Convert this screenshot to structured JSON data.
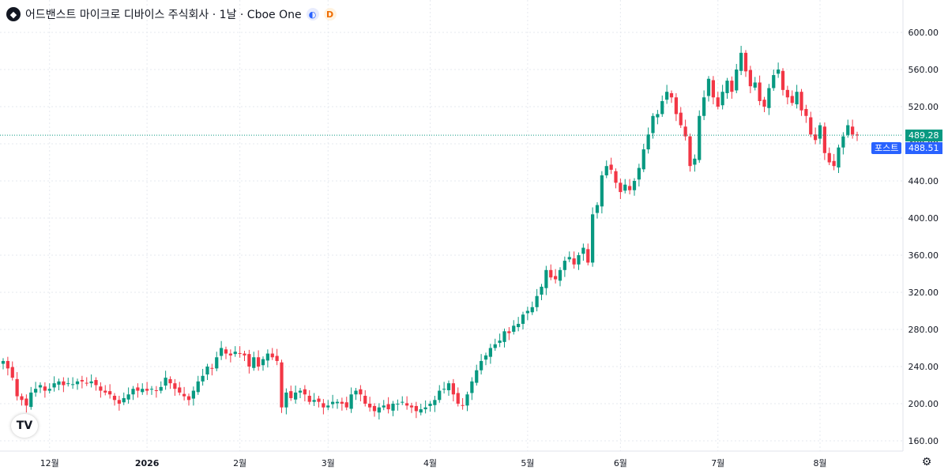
{
  "header": {
    "logo": "amd-logo-icon",
    "title": "어드밴스트 마이크로 디바이스 주식회사 · 1날 · Cboe One",
    "session_icon": "moon-icon",
    "badge": "D"
  },
  "tags": {
    "last_price": "489.28",
    "last_color": "#089981",
    "post_label": "포스트",
    "post_price": "488.51",
    "post_color": "#2962ff"
  },
  "colors": {
    "up": "#089981",
    "down": "#f23645",
    "grid": "#e6e9ef"
  },
  "chart_data": {
    "type": "candlestick",
    "y_ticks": [
      160,
      200,
      240,
      280,
      320,
      360,
      400,
      440,
      480,
      520,
      560,
      600
    ],
    "y_tick_labels": [
      "160.00",
      "200.00",
      "240.00",
      "280.00",
      "320.00",
      "360.00",
      "400.00",
      "440.00",
      "480.00",
      "520.00",
      "560.00",
      "600.00"
    ],
    "ylim": [
      150,
      600
    ],
    "x_labels": [
      {
        "text": "12월",
        "index": 10,
        "bold": false
      },
      {
        "text": "2026",
        "index": 31,
        "bold": true
      },
      {
        "text": "2월",
        "index": 51,
        "bold": false
      },
      {
        "text": "3월",
        "index": 70,
        "bold": false
      },
      {
        "text": "4월",
        "index": 92,
        "bold": false
      },
      {
        "text": "5월",
        "index": 113,
        "bold": false
      },
      {
        "text": "6월",
        "index": 133,
        "bold": false
      },
      {
        "text": "7월",
        "index": 154,
        "bold": false
      },
      {
        "text": "8월",
        "index": 176,
        "bold": false
      }
    ],
    "closes": [
      246,
      238,
      228,
      208,
      204,
      198,
      212,
      216,
      220,
      214,
      216,
      222,
      224,
      220,
      222,
      221,
      224,
      224,
      222,
      224,
      220,
      214,
      212,
      210,
      204,
      200,
      206,
      210,
      216,
      214,
      216,
      214,
      216,
      214,
      218,
      228,
      222,
      216,
      212,
      208,
      204,
      214,
      224,
      230,
      240,
      238,
      250,
      260,
      254,
      252,
      256,
      254,
      252,
      240,
      250,
      240,
      248,
      254,
      250,
      246,
      196,
      212,
      206,
      212,
      214,
      210,
      202,
      204,
      202,
      196,
      198,
      202,
      202,
      200,
      196,
      210,
      214,
      210,
      200,
      196,
      192,
      196,
      198,
      194,
      200,
      200,
      202,
      198,
      196,
      192,
      194,
      196,
      200,
      204,
      214,
      216,
      222,
      210,
      200,
      198,
      210,
      224,
      236,
      246,
      252,
      260,
      264,
      268,
      278,
      276,
      284,
      286,
      296,
      300,
      304,
      316,
      326,
      344,
      336,
      334,
      344,
      354,
      358,
      350,
      360,
      368,
      352,
      404,
      414,
      446,
      456,
      452,
      438,
      428,
      436,
      430,
      440,
      454,
      474,
      490,
      510,
      512,
      526,
      536,
      530,
      512,
      500,
      488,
      456,
      464,
      510,
      530,
      550,
      530,
      520,
      536,
      548,
      536,
      560,
      578,
      558,
      542,
      546,
      526,
      520,
      540,
      554,
      560,
      538,
      530,
      524,
      536,
      516,
      510,
      490,
      484,
      500,
      470,
      460,
      456,
      476,
      488,
      500,
      490,
      489
    ]
  }
}
